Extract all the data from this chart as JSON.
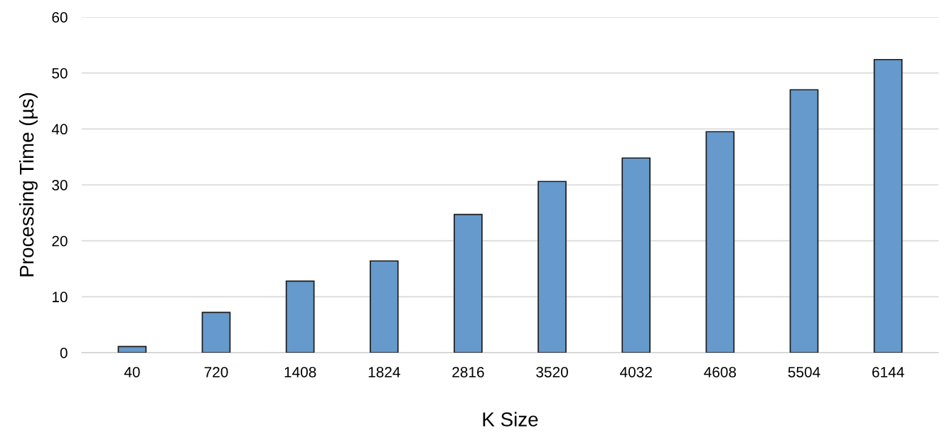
{
  "chart_data": {
    "type": "bar",
    "xlabel": "K Size",
    "ylabel": "Processing Time (µs)",
    "categories": [
      "40",
      "720",
      "1408",
      "1824",
      "2816",
      "3520",
      "4032",
      "4608",
      "5504",
      "6144"
    ],
    "values": [
      1.1,
      7.2,
      12.8,
      16.4,
      24.7,
      30.6,
      34.8,
      39.5,
      47.0,
      52.4
    ],
    "color": "#6699cc",
    "ylim": [
      0,
      60
    ],
    "yticks": [
      0,
      10,
      20,
      30,
      40,
      50,
      60
    ],
    "grid": "y",
    "legend": false
  }
}
